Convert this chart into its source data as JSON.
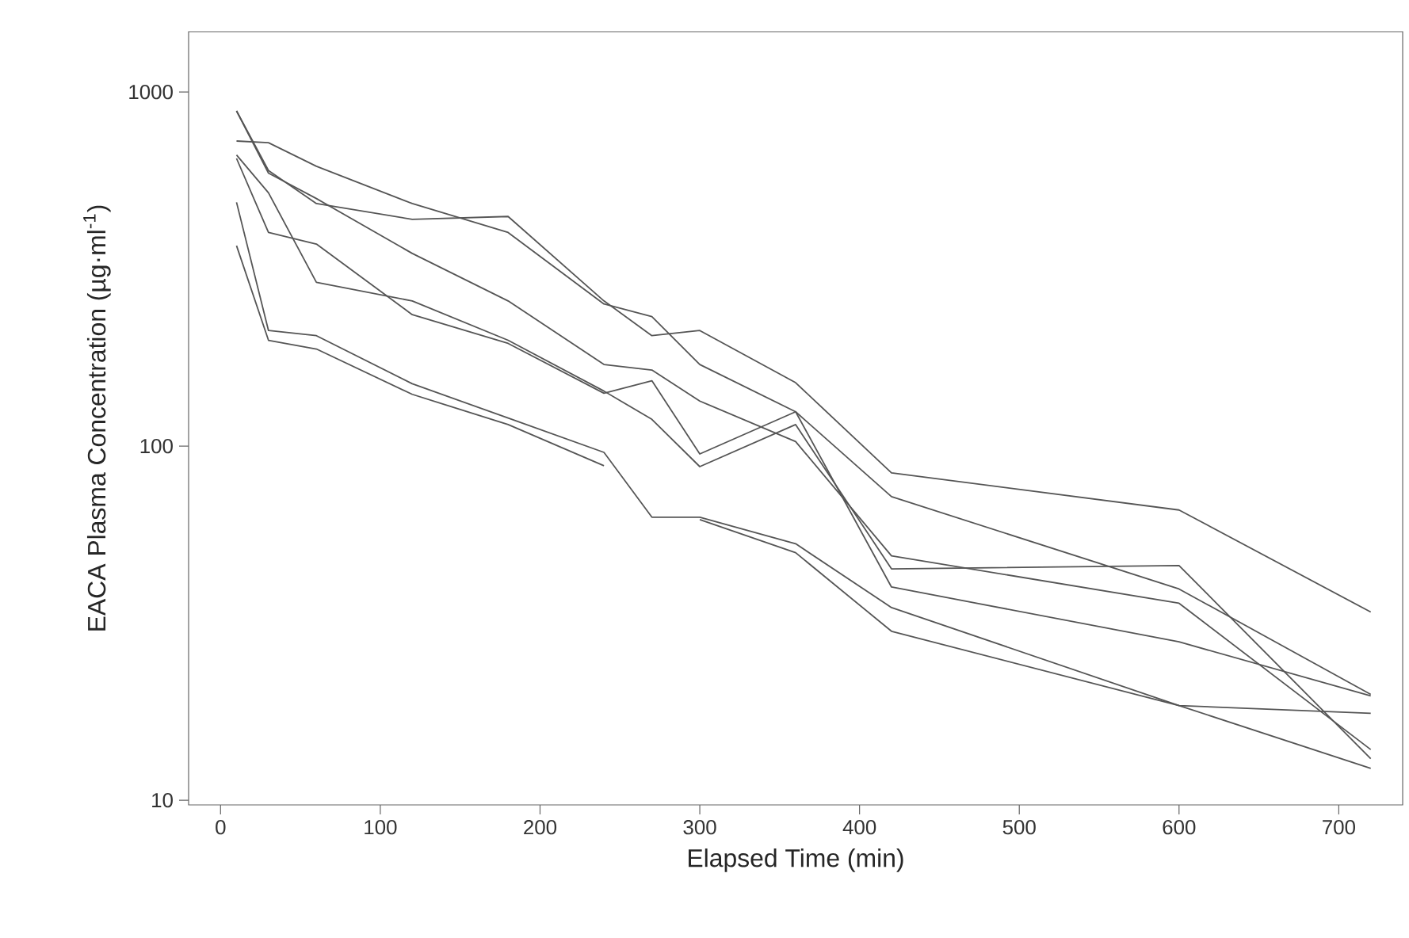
{
  "chart_data": {
    "type": "line",
    "xlabel": "Elapsed Time (min)",
    "ylabel": "EACA Plasma Concentration (µg·ml$^{-1}$)",
    "log": "y",
    "x": [
      10,
      30,
      60,
      120,
      180,
      240,
      270,
      300,
      360,
      420,
      600,
      720
    ],
    "xlim": [
      -20,
      740
    ],
    "xticks": [
      0,
      100,
      200,
      300,
      400,
      500,
      600,
      700
    ],
    "ylim": [
      9.7,
      1480
    ],
    "yticks": [
      10,
      100,
      1000
    ],
    "series": [
      {
        "color": "#555555",
        "values": [
          884,
          600,
          484,
          437,
          445,
          257,
          205,
          212,
          151,
          84,
          66,
          34
        ]
      },
      {
        "color": "#555555",
        "values": [
          884,
          590,
          500,
          350,
          257,
          170,
          164,
          134,
          103,
          49,
          36,
          13.9
        ]
      },
      {
        "color": "#555555",
        "values": [
          727,
          719,
          617,
          484,
          401,
          252,
          232,
          170,
          125,
          72,
          39.5,
          19.9
        ]
      },
      {
        "color": "#555555",
        "values": [
          664,
          519,
          290,
          257,
          199,
          143,
          119,
          87.5,
          115,
          45,
          46,
          13.1
        ]
      },
      {
        "color": "#555555",
        "values": [
          649,
          401,
          372,
          235,
          195,
          141,
          153,
          95,
          125,
          40,
          28,
          19.7
        ]
      },
      {
        "color": "#555555",
        "values": [
          488,
          212,
          205,
          150,
          120,
          96,
          63,
          63,
          53,
          35,
          18.5,
          12.3
        ]
      },
      {
        "color": "#555555",
        "values": [
          368,
          199,
          188,
          140,
          115,
          88,
          null,
          62,
          50,
          30,
          18.5,
          17.6
        ]
      }
    ]
  }
}
